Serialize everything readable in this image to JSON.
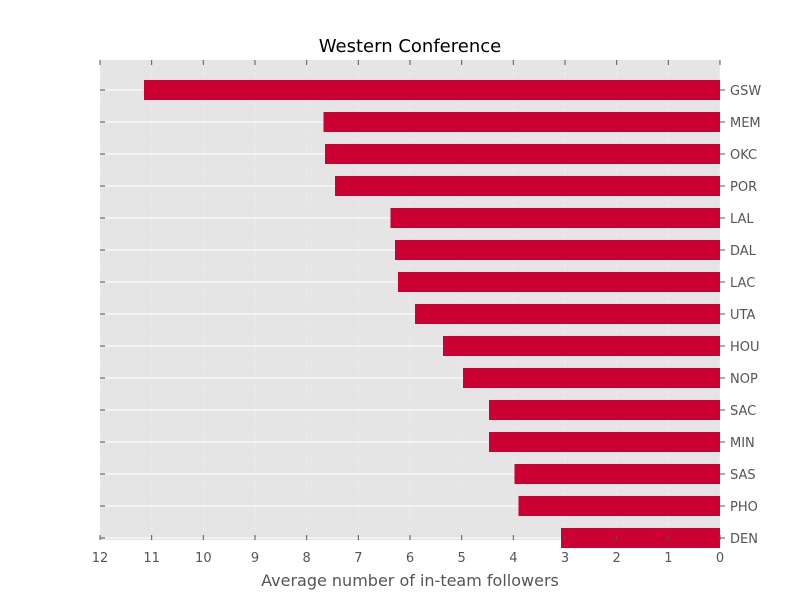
{
  "chart_data": {
    "type": "bar",
    "orientation": "horizontal",
    "x_inverted": true,
    "title": "Western Conference",
    "xlabel": "Average number of in-team followers",
    "ylabel": "",
    "xlim": [
      12,
      0
    ],
    "xticks": [
      "12",
      "11",
      "10",
      "9",
      "8",
      "7",
      "6",
      "5",
      "4",
      "3",
      "2",
      "1",
      "0"
    ],
    "grid": true,
    "bar_color": "#CC0033",
    "background_color": "#E5E5E5",
    "categories": [
      "GSW",
      "MEM",
      "OKC",
      "POR",
      "LAL",
      "DAL",
      "LAC",
      "UTA",
      "HOU",
      "NOP",
      "SAC",
      "MIN",
      "SAS",
      "PHO",
      "DEN"
    ],
    "values": [
      11.15,
      7.67,
      7.65,
      7.45,
      6.38,
      6.29,
      6.23,
      5.9,
      5.36,
      4.97,
      4.47,
      4.47,
      3.98,
      3.9,
      3.08
    ]
  }
}
